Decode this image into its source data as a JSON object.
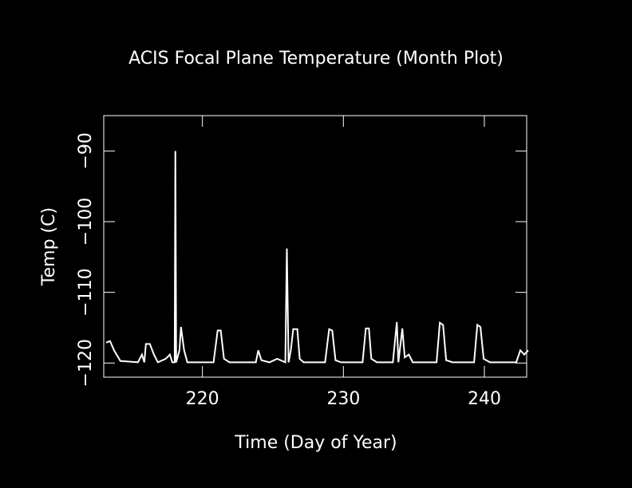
{
  "chart_data": {
    "type": "line",
    "title": "ACIS Focal Plane Temperature (Month Plot)",
    "x_label": "Time (Day of Year)",
    "y_label": "Temp (C)",
    "x": [
      213.17,
      213.45,
      213.73,
      214.18,
      215.43,
      215.71,
      215.88,
      215.99,
      216.27,
      216.56,
      216.84,
      217.4,
      217.69,
      217.86,
      218.03,
      218.08,
      218.14,
      218.37,
      218.48,
      218.7,
      218.93,
      220.79,
      221.08,
      221.3,
      221.53,
      221.92,
      223.79,
      223.96,
      224.18,
      224.75,
      225.31,
      225.88,
      225.99,
      226.11,
      226.27,
      226.44,
      226.73,
      226.9,
      227.18,
      228.7,
      228.99,
      229.21,
      229.44,
      229.83,
      231.36,
      231.59,
      231.81,
      231.98,
      232.38,
      233.51,
      233.79,
      233.9,
      234.18,
      234.35,
      234.64,
      234.92,
      236.61,
      236.84,
      237.07,
      237.29,
      237.74,
      239.27,
      239.5,
      239.72,
      239.95,
      240.4,
      242.26,
      242.55,
      242.83,
      243.11
    ],
    "series": [
      {
        "color": "#ffffff",
        "values": [
          -117.1,
          -116.9,
          -118.2,
          -119.7,
          -119.9,
          -118.8,
          -119.9,
          -117.3,
          -117.3,
          -118.8,
          -119.9,
          -119.4,
          -118.8,
          -119.9,
          -119.9,
          -90,
          -119.9,
          -118.2,
          -114.9,
          -118.2,
          -119.9,
          -119.9,
          -115.4,
          -115.4,
          -119.4,
          -119.9,
          -119.9,
          -118.2,
          -119.6,
          -119.9,
          -119.4,
          -119.9,
          -103.8,
          -119.9,
          -118.2,
          -115.2,
          -115.2,
          -119.4,
          -119.9,
          -119.9,
          -115.2,
          -115.4,
          -119.6,
          -119.9,
          -119.9,
          -115.1,
          -115.1,
          -119.4,
          -119.9,
          -119.9,
          -114.2,
          -119.9,
          -115.1,
          -119.2,
          -118.8,
          -119.9,
          -119.9,
          -114.3,
          -114.6,
          -119.6,
          -119.9,
          -119.9,
          -114.6,
          -114.9,
          -119.4,
          -119.9,
          -119.9,
          -118.2,
          -118.8,
          -118.2
        ]
      }
    ],
    "xlim": [
      213,
      243
    ],
    "ylim": [
      -122,
      -85
    ],
    "xticks": [
      220,
      230,
      240
    ],
    "yticks": [
      {
        "value": -120,
        "label": "−120"
      },
      {
        "value": -110,
        "label": "−110"
      },
      {
        "value": -100,
        "label": "−100"
      },
      {
        "value": -90,
        "label": "−90"
      }
    ],
    "background": "#000000"
  }
}
